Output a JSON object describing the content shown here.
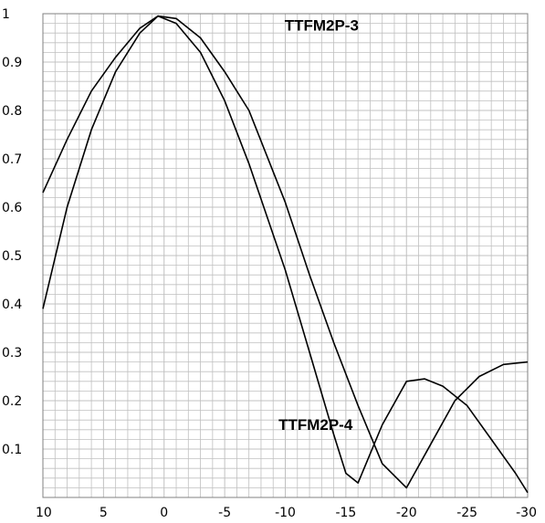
{
  "chart_data": {
    "type": "line",
    "title": "",
    "xlabel": "",
    "ylabel": "",
    "xlim": [
      10,
      -30
    ],
    "ylim": [
      0,
      1
    ],
    "grid": true,
    "legend": "none",
    "x_ticks": [
      10,
      5,
      0,
      -5,
      -10,
      -15,
      -20,
      -25,
      -30
    ],
    "y_ticks": [
      0.1,
      0.2,
      0.3,
      0.4,
      0.5,
      0.6,
      0.7,
      0.8,
      0.9,
      1
    ],
    "series": [
      {
        "name": "TTFM2P-3",
        "x": [
          10,
          8,
          6,
          4,
          2,
          0.5,
          -1,
          -3,
          -5,
          -7,
          -10,
          -12,
          -14,
          -16,
          -18,
          -20,
          -22,
          -24,
          -26,
          -28,
          -30
        ],
        "values": [
          0.63,
          0.74,
          0.84,
          0.91,
          0.97,
          0.995,
          0.99,
          0.95,
          0.88,
          0.8,
          0.61,
          0.46,
          0.32,
          0.19,
          0.07,
          0.02,
          0.11,
          0.2,
          0.25,
          0.275,
          0.28
        ]
      },
      {
        "name": "TTFM2P-4",
        "x": [
          10,
          8,
          6,
          4,
          2,
          0.5,
          -1,
          -3,
          -5,
          -7,
          -10,
          -12,
          -14,
          -15,
          -16,
          -18,
          -20,
          -21.5,
          -23,
          -25,
          -27,
          -29,
          -30
        ],
        "values": [
          0.39,
          0.6,
          0.76,
          0.88,
          0.96,
          0.995,
          0.98,
          0.92,
          0.82,
          0.69,
          0.47,
          0.3,
          0.13,
          0.05,
          0.03,
          0.15,
          0.24,
          0.245,
          0.23,
          0.19,
          0.12,
          0.05,
          0.01
        ]
      }
    ],
    "annotations": [
      {
        "text": "TTFM2P-3",
        "x": -13,
        "y": 0.965
      },
      {
        "text": "TTFM2P-4",
        "x": -12.5,
        "y": 0.14
      }
    ],
    "colors": {
      "line": "#000000",
      "grid": "#c0c0c0",
      "background": "#ffffff"
    }
  }
}
